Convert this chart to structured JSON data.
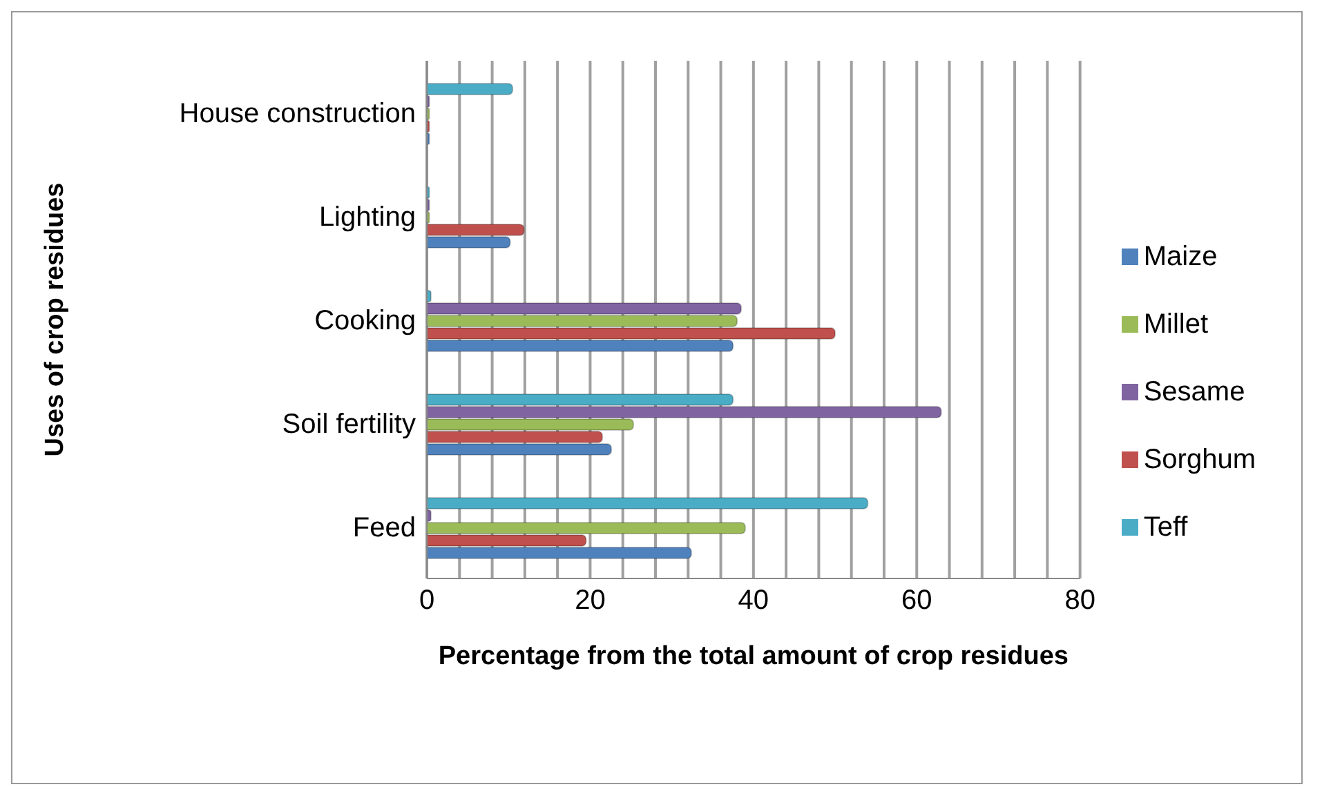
{
  "chart_data": {
    "type": "bar",
    "orientation": "horizontal",
    "xlabel": "Percentage from the total amount of crop residues",
    "ylabel": "Uses of crop residues",
    "categories": [
      "House construction",
      "Lighting",
      "Cooking",
      "Soil fertility",
      "Feed"
    ],
    "series": [
      {
        "name": "Teff",
        "color": "#4bacc6",
        "values": [
          10.5,
          0.3,
          0.5,
          37.5,
          54
        ]
      },
      {
        "name": "Sesame",
        "color": "#8064a2",
        "values": [
          0.3,
          0.3,
          38.5,
          63,
          0.5
        ]
      },
      {
        "name": "Millet",
        "color": "#9bbb59",
        "values": [
          0.3,
          0.3,
          38,
          25.3,
          39
        ]
      },
      {
        "name": "Sorghum",
        "color": "#c0504d",
        "values": [
          0.3,
          11.9,
          50,
          21.5,
          19.5
        ]
      },
      {
        "name": "Maize",
        "color": "#4f81bd",
        "values": [
          0.3,
          10.2,
          37.5,
          22.6,
          32.4
        ]
      }
    ],
    "xlim": [
      0,
      80
    ],
    "xticks": [
      0,
      {
        "value": 4,
        "label": null
      },
      {
        "value": 8,
        "label": null
      },
      {
        "value": 12,
        "label": null
      },
      {
        "value": 16,
        "label": null
      },
      20,
      {
        "value": 24,
        "label": null
      },
      {
        "value": 28,
        "label": null
      },
      {
        "value": 32,
        "label": null
      },
      {
        "value": 36,
        "label": null
      },
      40,
      {
        "value": 44,
        "label": null
      },
      {
        "value": 48,
        "label": null
      },
      {
        "value": 52,
        "label": null
      },
      {
        "value": 56,
        "label": null
      },
      60,
      {
        "value": 64,
        "label": null
      },
      {
        "value": 68,
        "label": null
      },
      {
        "value": 72,
        "label": null
      },
      {
        "value": 76,
        "label": null
      },
      80
    ],
    "grid": "x",
    "legend": "right"
  }
}
